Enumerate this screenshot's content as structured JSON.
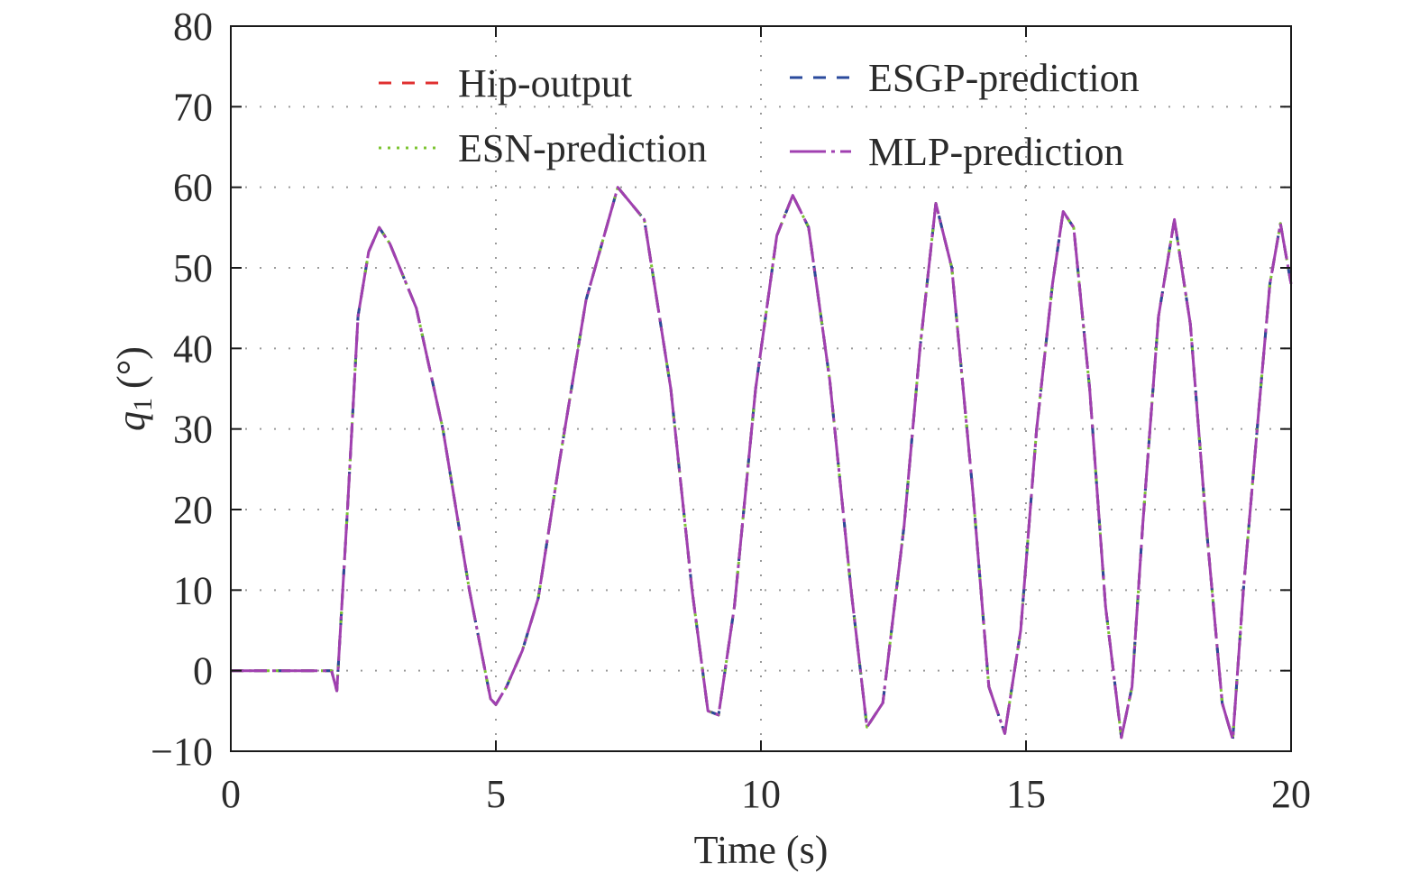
{
  "chart_data": {
    "type": "line",
    "title": "",
    "xlabel": "Time (s)",
    "ylabel": {
      "symbol": "q",
      "subscript": "1",
      "unit": "(°)"
    },
    "xlim": [
      0,
      20
    ],
    "ylim": [
      -10,
      80
    ],
    "xticks": [
      0,
      5,
      10,
      15,
      20
    ],
    "yticks": [
      -10,
      0,
      10,
      20,
      30,
      40,
      50,
      60,
      70,
      80
    ],
    "ytick_labels": [
      "−10",
      "0",
      "10",
      "20",
      "30",
      "40",
      "50",
      "60",
      "70",
      "80"
    ],
    "grid": "dotted",
    "legend_position": "top",
    "x": [
      0,
      1.0,
      1.9,
      2.0,
      2.2,
      2.4,
      2.6,
      2.8,
      3.0,
      3.5,
      4.0,
      4.5,
      4.9,
      5.0,
      5.2,
      5.5,
      5.8,
      6.2,
      6.7,
      7.3,
      7.8,
      8.3,
      8.7,
      9.0,
      9.2,
      9.5,
      9.9,
      10.3,
      10.6,
      10.9,
      11.3,
      11.7,
      12.0,
      12.3,
      12.7,
      13.0,
      13.3,
      13.6,
      14.0,
      14.3,
      14.6,
      14.9,
      15.2,
      15.5,
      15.7,
      15.9,
      16.2,
      16.5,
      16.8,
      17.0,
      17.2,
      17.5,
      17.8,
      18.1,
      18.4,
      18.7,
      18.9,
      19.1,
      19.4,
      19.6,
      19.8,
      20.0
    ],
    "series": [
      {
        "name": "Hip-output",
        "color": "#e03030",
        "dash": "14,12",
        "values": [
          0,
          0,
          0,
          -2.5,
          20,
          44,
          52,
          55,
          53,
          45,
          30,
          10,
          -3.5,
          -4.2,
          -2,
          2.5,
          9,
          26,
          46,
          60,
          56,
          35,
          10,
          -5,
          -5.5,
          8,
          35,
          54,
          59,
          55,
          36,
          10,
          -7,
          -4,
          18,
          40,
          58,
          50,
          22,
          -2,
          -7.8,
          5,
          30,
          48,
          57,
          55,
          35,
          8,
          -8.3,
          -2,
          18,
          44,
          56,
          43,
          18,
          -4,
          -8.5,
          10,
          33,
          48,
          55.5,
          48
        ]
      },
      {
        "name": "ESGP-prediction",
        "color": "#2a4a9c",
        "dash": "14,12",
        "values": [
          0,
          0,
          0,
          -2.5,
          20,
          44,
          52,
          55,
          53,
          45,
          30,
          10,
          -3.5,
          -4.2,
          -2,
          2.5,
          9,
          26,
          46,
          60,
          56,
          35,
          10,
          -5,
          -5.5,
          8,
          35,
          54,
          59,
          55,
          36,
          10,
          -7,
          -4,
          18,
          40,
          58,
          50,
          22,
          -2,
          -7.8,
          5,
          30,
          48,
          57,
          55,
          35,
          8,
          -8.3,
          -2,
          18,
          44,
          56,
          43,
          18,
          -4,
          -8.5,
          10,
          33,
          48,
          55.5,
          48
        ]
      },
      {
        "name": "ESN-prediction",
        "color": "#7cc432",
        "dash": "3,7",
        "values": [
          0,
          0,
          0,
          -2.5,
          20,
          44,
          52,
          55,
          53,
          45,
          30,
          10,
          -3.5,
          -4.2,
          -2,
          2.5,
          9,
          26,
          46,
          60,
          56,
          35,
          10,
          -5,
          -5.5,
          8,
          35,
          54,
          59,
          55,
          36,
          10,
          -7,
          -4,
          18,
          40,
          58,
          50,
          22,
          -2,
          -7.8,
          5,
          30,
          48,
          57,
          55,
          35,
          8,
          -8.3,
          -2,
          18,
          44,
          56,
          43,
          18,
          -4,
          -8.5,
          10,
          33,
          48,
          55.5,
          48
        ]
      },
      {
        "name": "MLP-prediction",
        "color": "#a040b0",
        "dash": "40,6,4,6",
        "values": [
          0,
          0,
          0,
          -2.5,
          20,
          44,
          52,
          55,
          53,
          45,
          30,
          10,
          -3.5,
          -4.2,
          -2,
          2.5,
          9,
          26,
          46,
          60,
          56,
          35,
          10,
          -5,
          -5.5,
          8,
          35,
          54,
          59,
          55,
          36,
          10,
          -7,
          -4,
          18,
          40,
          58,
          50,
          22,
          -2,
          -7.8,
          5,
          30,
          48,
          57,
          55,
          35,
          8,
          -8.3,
          -2,
          18,
          44,
          56,
          43,
          18,
          -4,
          -8.5,
          10,
          33,
          48,
          55.5,
          48
        ]
      }
    ]
  }
}
